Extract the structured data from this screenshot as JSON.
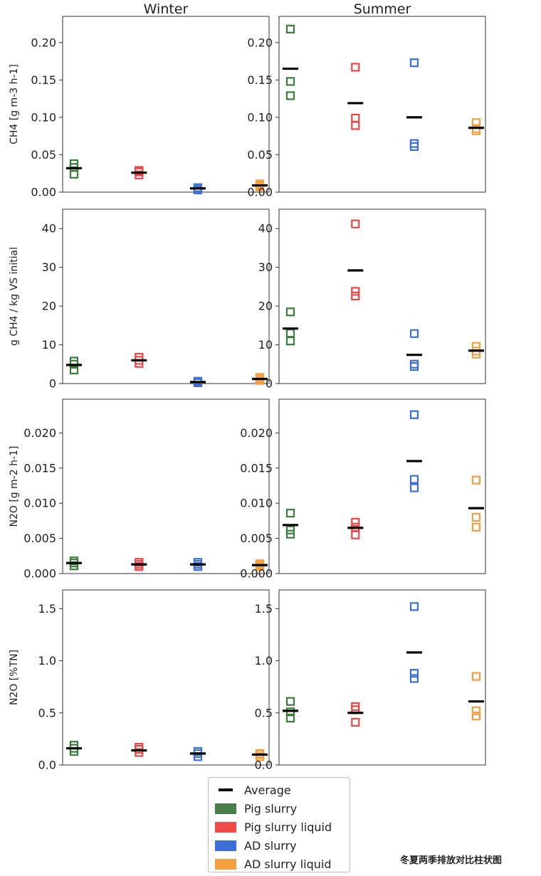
{
  "chart_data": {
    "type": "scatter",
    "columns": [
      "Winter",
      "Summer"
    ],
    "groups": [
      "Pig slurry",
      "Pig slurry liquid",
      "AD slurry",
      "AD slurry liquid"
    ],
    "colors": {
      "Pig slurry": "#3a7d3a",
      "Pig slurry liquid": "#ef4444",
      "AD slurry": "#3b6fd8",
      "AD slurry liquid": "#f5a040",
      "Average": "#000000"
    },
    "rows": [
      {
        "ylabel": "CH4 [g m-3 h-1]",
        "ylim": [
          0,
          0.235
        ],
        "yticks": [
          0.0,
          0.05,
          0.1,
          0.15,
          0.2
        ],
        "ticklabels": [
          "0.00",
          "0.05",
          "0.10",
          "0.15",
          "0.20"
        ],
        "winter": [
          {
            "group": "Pig slurry",
            "points": [
              0.024,
              0.033,
              0.038
            ],
            "average": 0.032
          },
          {
            "group": "Pig slurry liquid",
            "points": [
              0.023,
              0.027,
              0.029
            ],
            "average": 0.026
          },
          {
            "group": "AD slurry",
            "points": [
              0.003,
              0.005,
              0.006
            ],
            "average": 0.005
          },
          {
            "group": "AD slurry liquid",
            "points": [
              0.007,
              0.009,
              0.011
            ],
            "average": 0.009
          }
        ],
        "summer": [
          {
            "group": "Pig slurry",
            "points": [
              0.218,
              0.148,
              0.129
            ],
            "average": 0.165
          },
          {
            "group": "Pig slurry liquid",
            "points": [
              0.167,
              0.099,
              0.089
            ],
            "average": 0.119
          },
          {
            "group": "AD slurry",
            "points": [
              0.173,
              0.065,
              0.061
            ],
            "average": 0.1
          },
          {
            "group": "AD slurry liquid",
            "points": [
              0.093,
              0.085,
              0.082
            ],
            "average": 0.086
          }
        ]
      },
      {
        "ylabel": "g CH4 / kg VS initial",
        "ylim": [
          0,
          45
        ],
        "yticks": [
          0,
          10,
          20,
          30,
          40
        ],
        "ticklabels": [
          "0",
          "10",
          "20",
          "30",
          "40"
        ],
        "winter": [
          {
            "group": "Pig slurry",
            "points": [
              3.5,
              5.0,
              5.8
            ],
            "average": 4.8
          },
          {
            "group": "Pig slurry liquid",
            "points": [
              5.2,
              6.0,
              6.8
            ],
            "average": 6.0
          },
          {
            "group": "AD slurry",
            "points": [
              0.2,
              0.4,
              0.6
            ],
            "average": 0.4
          },
          {
            "group": "AD slurry liquid",
            "points": [
              0.8,
              1.2,
              1.6
            ],
            "average": 1.2
          }
        ],
        "summer": [
          {
            "group": "Pig slurry",
            "points": [
              18.5,
              13.0,
              11.0
            ],
            "average": 14.2
          },
          {
            "group": "Pig slurry liquid",
            "points": [
              41.2,
              23.8,
              22.6
            ],
            "average": 29.2
          },
          {
            "group": "AD slurry",
            "points": [
              12.9,
              5.0,
              4.4
            ],
            "average": 7.4
          },
          {
            "group": "AD slurry liquid",
            "points": [
              9.6,
              8.4,
              7.6
            ],
            "average": 8.5
          }
        ]
      },
      {
        "ylabel": "N2O [g m-2 h-1]",
        "ylim": [
          0,
          0.0248
        ],
        "yticks": [
          0.0,
          0.005,
          0.01,
          0.015,
          0.02
        ],
        "ticklabels": [
          "0.000",
          "0.005",
          "0.010",
          "0.015",
          "0.020"
        ],
        "winter": [
          {
            "group": "Pig slurry",
            "points": [
              0.0011,
              0.0015,
              0.0018
            ],
            "average": 0.0015
          },
          {
            "group": "Pig slurry liquid",
            "points": [
              0.001,
              0.0013,
              0.0016
            ],
            "average": 0.0013
          },
          {
            "group": "AD slurry",
            "points": [
              0.001,
              0.0013,
              0.0016
            ],
            "average": 0.0013
          },
          {
            "group": "AD slurry liquid",
            "points": [
              0.001,
              0.0012,
              0.0014
            ],
            "average": 0.0012
          }
        ],
        "summer": [
          {
            "group": "Pig slurry",
            "points": [
              0.0086,
              0.0062,
              0.0056
            ],
            "average": 0.0069
          },
          {
            "group": "Pig slurry liquid",
            "points": [
              0.0073,
              0.0066,
              0.0055
            ],
            "average": 0.0065
          },
          {
            "group": "AD slurry",
            "points": [
              0.0226,
              0.0134,
              0.0122
            ],
            "average": 0.016
          },
          {
            "group": "AD slurry liquid",
            "points": [
              0.0133,
              0.008,
              0.0066
            ],
            "average": 0.0093
          }
        ]
      },
      {
        "ylabel": "N2O [%TN]",
        "ylim": [
          0,
          1.68
        ],
        "yticks": [
          0.0,
          0.5,
          1.0,
          1.5
        ],
        "ticklabels": [
          "0.0",
          "0.5",
          "1.0",
          "1.5"
        ],
        "winter": [
          {
            "group": "Pig slurry",
            "points": [
              0.13,
              0.16,
              0.19
            ],
            "average": 0.16
          },
          {
            "group": "Pig slurry liquid",
            "points": [
              0.12,
              0.15,
              0.17
            ],
            "average": 0.14
          },
          {
            "group": "AD slurry",
            "points": [
              0.08,
              0.11,
              0.13
            ],
            "average": 0.11
          },
          {
            "group": "AD slurry liquid",
            "points": [
              0.08,
              0.1,
              0.11
            ],
            "average": 0.1
          }
        ],
        "summer": [
          {
            "group": "Pig slurry",
            "points": [
              0.61,
              0.51,
              0.45
            ],
            "average": 0.52
          },
          {
            "group": "Pig slurry liquid",
            "points": [
              0.56,
              0.53,
              0.41
            ],
            "average": 0.5
          },
          {
            "group": "AD slurry",
            "points": [
              1.52,
              0.88,
              0.83
            ],
            "average": 1.08
          },
          {
            "group": "AD slurry liquid",
            "points": [
              0.85,
              0.52,
              0.47
            ],
            "average": 0.61
          }
        ]
      }
    ]
  },
  "legend": {
    "entries": [
      "Average",
      "Pig slurry",
      "Pig slurry liquid",
      "AD slurry",
      "AD slurry liquid"
    ]
  },
  "caption": "冬夏两季排放对比柱状图"
}
